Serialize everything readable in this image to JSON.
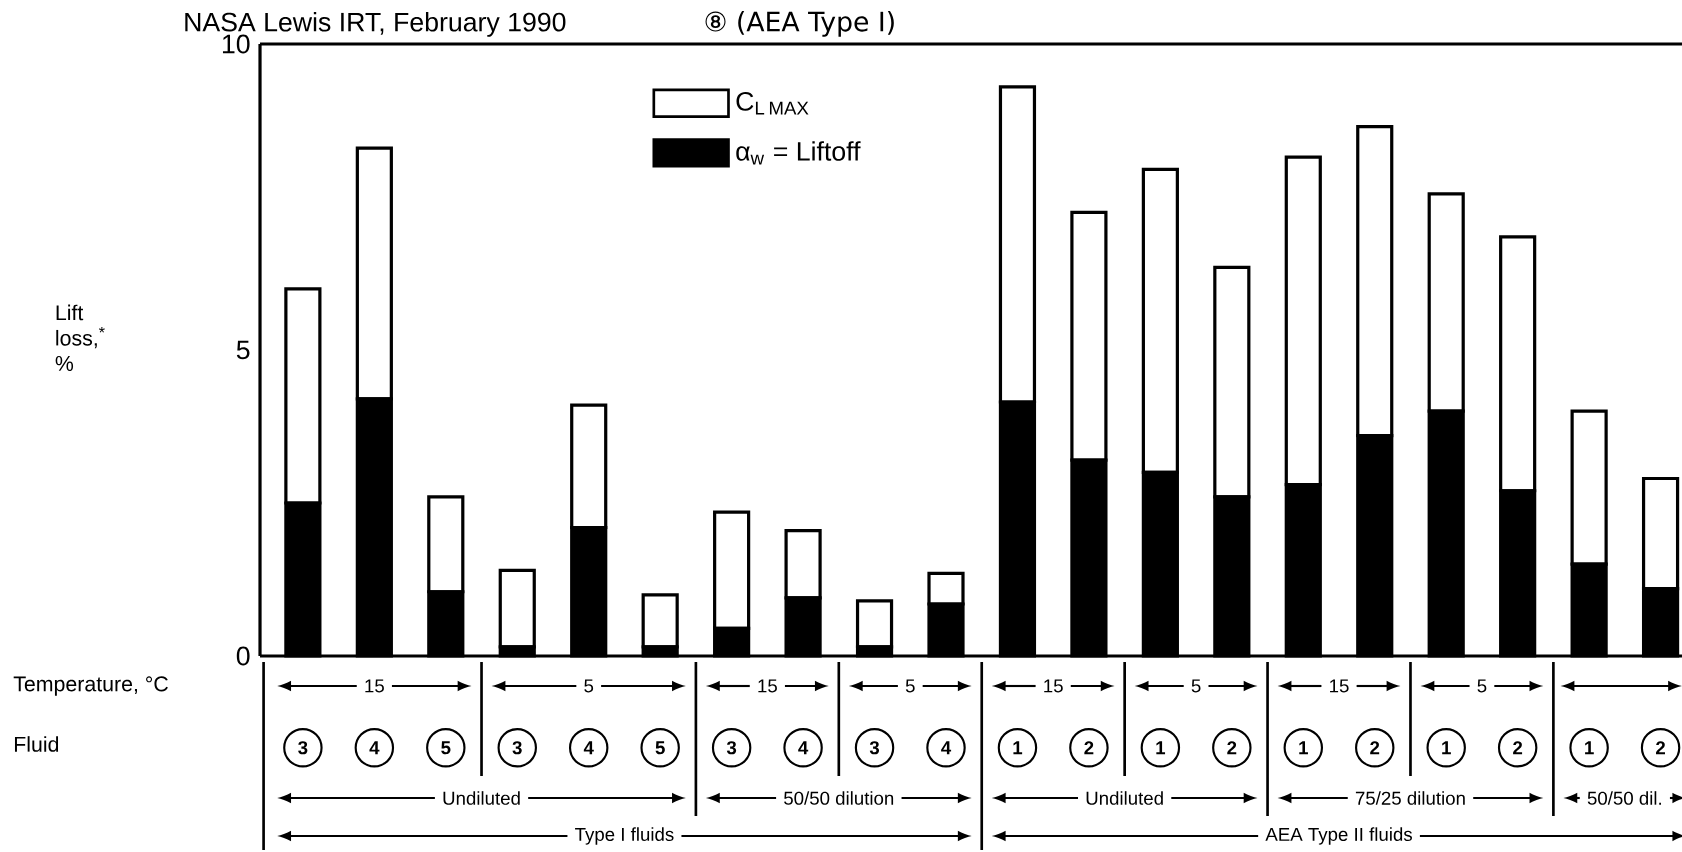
{
  "chart_data": {
    "type": "bar",
    "stacked": true,
    "title": "NASA Lewis IRT, February 1990",
    "ylabel": "Lift loss,$^{*}$ %",
    "categories": [
      "3",
      "4",
      "5",
      "3",
      "4",
      "5",
      "3",
      "4",
      "3",
      "4",
      "1",
      "2",
      "1",
      "2",
      "1",
      "2",
      "1",
      "2",
      "1",
      "2"
    ],
    "series": [
      {
        "name": "α$_{w}$ = Liftoff",
        "color": "#000000",
        "values": [
          2.5,
          4.2,
          1.05,
          0.15,
          2.1,
          0.15,
          0.45,
          0.95,
          0.15,
          0.85,
          4.15,
          3.2,
          3.0,
          2.6,
          2.8,
          3.6,
          4.0,
          2.7,
          1.5,
          1.1
        ]
      },
      {
        "name": "\\mathrm{C}_{\\mathrm{L\\,MAX}}",
        "color": "#ffffff",
        "values": [
          3.5,
          4.1,
          1.55,
          1.25,
          2.0,
          0.85,
          1.9,
          1.1,
          0.75,
          0.5,
          5.15,
          4.05,
          4.95,
          3.75,
          5.35,
          5.05,
          3.55,
          4.15,
          2.5,
          1.8
        ]
      }
    ],
    "ylim": [
      0,
      10
    ],
    "yticks": [
      0,
      5,
      10
    ],
    "legend": "top",
    "annotations": [
      "⑧ (AEA Type I)",
      "Temperature, °C",
      "Fluid",
      "15",
      "5",
      "15",
      "5",
      "15",
      "5",
      "15",
      "5",
      "Undiluted",
      "50/50 dilution",
      "Undiluted",
      "75/25 dilution",
      "50/50 dil.",
      "Type I fluids",
      "AEA Type II fluids"
    ]
  }
}
